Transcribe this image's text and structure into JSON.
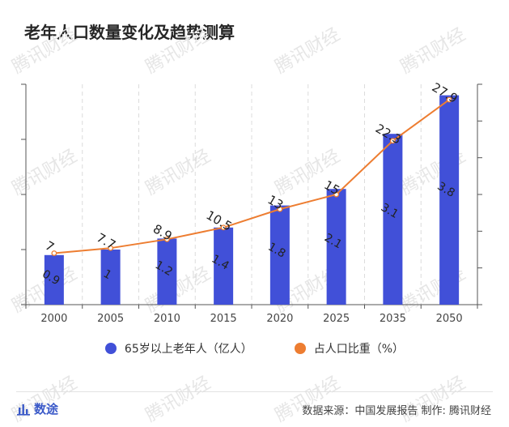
{
  "title": "老年人口数量变化及趋势测算",
  "watermark": "腾讯财经",
  "chart_data": {
    "type": "bar",
    "categories": [
      "2000",
      "2005",
      "2010",
      "2015",
      "2020",
      "2025",
      "2035",
      "2050"
    ],
    "series": [
      {
        "name": "65岁以上老年人（亿人）",
        "type": "bar",
        "axis": "left",
        "values": [
          0.9,
          1,
          1.2,
          1.4,
          1.8,
          2.1,
          3.1,
          3.8
        ],
        "color": "#4150d8"
      },
      {
        "name": "占人口比重（%）",
        "type": "line",
        "axis": "right",
        "values": [
          7,
          7.7,
          8.9,
          10.5,
          13,
          15,
          22.3,
          27.9
        ],
        "color": "#ed7d31"
      }
    ],
    "ylim_left": [
      0,
      4
    ],
    "ylim_right": [
      0,
      30
    ],
    "xlabel": "",
    "ylabel": "",
    "legend": "bottom-center"
  },
  "legend": {
    "bar_label": "65岁以上老年人（亿人）",
    "line_label": "占人口比重（%）",
    "bar_color": "#4150d8",
    "line_color": "#ed7d31"
  },
  "footer": {
    "logo_icon": "bar-chart-icon",
    "logo_text": "数途",
    "source": "数据来源：中国发展报告 制作: 腾讯财经"
  }
}
